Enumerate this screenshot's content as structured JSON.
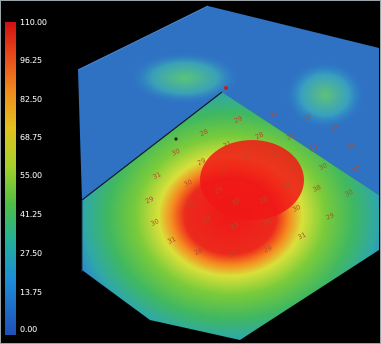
{
  "colorbar": {
    "colors": [
      "#d01010",
      "#e6461a",
      "#f08a1e",
      "#e0c21e",
      "#a6cf2a",
      "#4fbf44",
      "#23b09a",
      "#1d8ed6",
      "#1f4fb8"
    ],
    "ticks": [
      "110.00",
      "96.25",
      "82.50",
      "68.75",
      "55.00",
      "41.25",
      "27.50",
      "13.75",
      "0.00"
    ]
  },
  "sensor_labels": [
    "31",
    "28",
    "29",
    "28",
    "30",
    "29",
    "31",
    "28",
    "31",
    "29",
    "30",
    "38",
    "30",
    "28",
    "29",
    "32",
    "31",
    "30",
    "29",
    "31",
    "28",
    "30",
    "29",
    "31",
    "28",
    "30",
    "29",
    "31",
    "29",
    "30",
    "28",
    "31",
    "30",
    "29",
    "31",
    "30",
    "28",
    "29",
    "31"
  ]
}
